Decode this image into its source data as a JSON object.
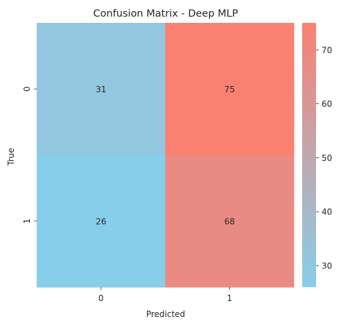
{
  "chart_data": {
    "type": "heatmap",
    "title": "Confusion Matrix - Deep MLP",
    "xlabel": "Predicted",
    "ylabel": "True",
    "x_categories": [
      "0",
      "1"
    ],
    "y_categories": [
      "0",
      "1"
    ],
    "matrix": [
      [
        31,
        75
      ],
      [
        26,
        68
      ]
    ],
    "colorbar": {
      "min": 26,
      "max": 75,
      "ticks": [
        "30",
        "40",
        "50",
        "60",
        "70"
      ],
      "tick_values": [
        30,
        40,
        50,
        60,
        70
      ]
    },
    "colors": {
      "low": "#87ceeb",
      "high": "#fa8072",
      "text": "#262626"
    }
  }
}
